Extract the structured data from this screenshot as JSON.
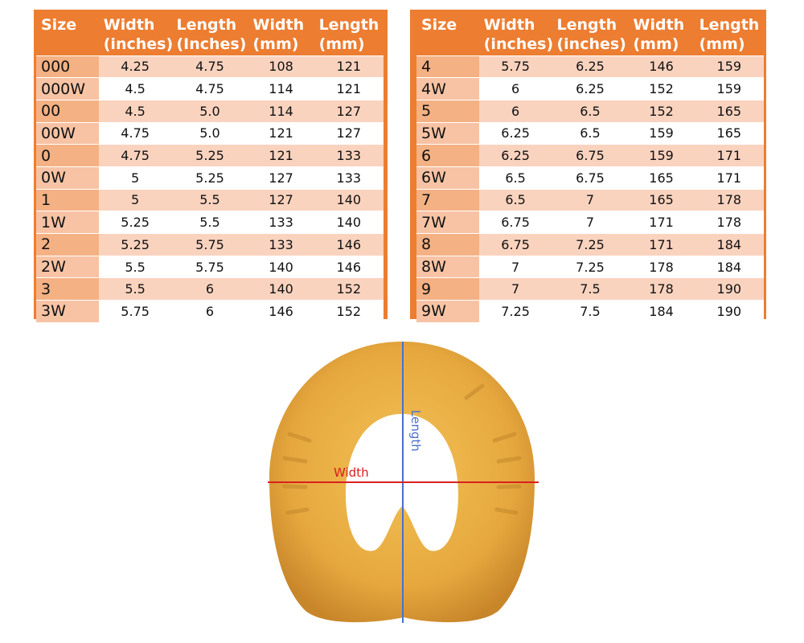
{
  "colors": {
    "accent": "#ed7d31",
    "size_cell": "#f4b184",
    "stripe": "#fad3bf",
    "length_line": "#4a6fd0",
    "width_line": "#d9201e",
    "shoe": "#e6a83e"
  },
  "headers": [
    "Size",
    "Width (inches)",
    "Length (Inches)",
    "Width (mm)",
    "Length (mm)"
  ],
  "headers_right": [
    "Size",
    "Width (inches)",
    "Length (inches)",
    "Width (mm)",
    "Length (mm)"
  ],
  "left_rows": [
    [
      "000",
      "4.25",
      "4.75",
      "108",
      "121"
    ],
    [
      "000W",
      "4.5",
      "4.75",
      "114",
      "121"
    ],
    [
      "00",
      "4.5",
      "5.0",
      "114",
      "127"
    ],
    [
      "00W",
      "4.75",
      "5.0",
      "121",
      "127"
    ],
    [
      "0",
      "4.75",
      "5.25",
      "121",
      "133"
    ],
    [
      "0W",
      "5",
      "5.25",
      "127",
      "133"
    ],
    [
      "1",
      "5",
      "5.5",
      "127",
      "140"
    ],
    [
      "1W",
      "5.25",
      "5.5",
      "133",
      "140"
    ],
    [
      "2",
      "5.25",
      "5.75",
      "133",
      "146"
    ],
    [
      "2W",
      "5.5",
      "5.75",
      "140",
      "146"
    ],
    [
      "3",
      "5.5",
      "6",
      "140",
      "152"
    ],
    [
      "3W",
      "5.75",
      "6",
      "146",
      "152"
    ]
  ],
  "right_rows": [
    [
      "4",
      "5.75",
      "6.25",
      "146",
      "159"
    ],
    [
      "4W",
      "6",
      "6.25",
      "152",
      "159"
    ],
    [
      "5",
      "6",
      "6.5",
      "152",
      "165"
    ],
    [
      "5W",
      "6.25",
      "6.5",
      "159",
      "165"
    ],
    [
      "6",
      "6.25",
      "6.75",
      "159",
      "171"
    ],
    [
      "6W",
      "6.5",
      "6.75",
      "165",
      "171"
    ],
    [
      "7",
      "6.5",
      "7",
      "165",
      "178"
    ],
    [
      "7W",
      "6.75",
      "7",
      "171",
      "178"
    ],
    [
      "8",
      "6.75",
      "7.25",
      "171",
      "184"
    ],
    [
      "8W",
      "7",
      "7.25",
      "178",
      "184"
    ],
    [
      "9",
      "7",
      "7.5",
      "178",
      "190"
    ],
    [
      "9W",
      "7.25",
      "7.5",
      "184",
      "190"
    ]
  ],
  "diagram": {
    "width_label": "Width",
    "length_label": "Length"
  }
}
